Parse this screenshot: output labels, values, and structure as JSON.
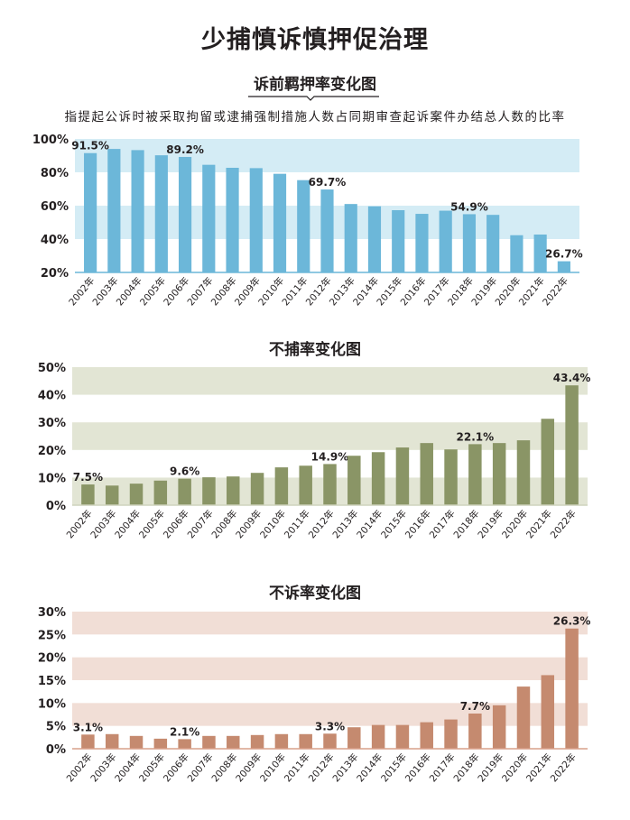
{
  "header": {
    "title": "少捕慎诉慎押促治理",
    "note": "指提起公诉时被采取拘留或逮捕强制措施人数占同期审查起诉案件办结总人数的比率"
  },
  "chart_data": [
    {
      "type": "bar",
      "title": "诉前羁押率变化图",
      "categories": [
        "2002年",
        "2003年",
        "2004年",
        "2005年",
        "2006年",
        "2007年",
        "2008年",
        "2009年",
        "2010年",
        "2011年",
        "2012年",
        "2013年",
        "2014年",
        "2015年",
        "2016年",
        "2017年",
        "2018年",
        "2019年",
        "2020年",
        "2021年",
        "2022年"
      ],
      "values": [
        91.5,
        94.0,
        93.3,
        90.2,
        89.2,
        84.5,
        82.7,
        82.5,
        79.1,
        75.3,
        69.7,
        61.0,
        59.6,
        57.3,
        55.1,
        57.0,
        54.9,
        54.5,
        42.3,
        42.7,
        26.7
      ],
      "data_labels": [
        "91.5%",
        "",
        "",
        "",
        "89.2%",
        "",
        "",
        "",
        "",
        "",
        "69.7%",
        "",
        "",
        "",
        "",
        "",
        "54.9%",
        "",
        "",
        "",
        "26.7%"
      ],
      "ylim": [
        20,
        100
      ],
      "yticks": [
        "20%",
        "40%",
        "60%",
        "80%",
        "100%"
      ],
      "grid": "alternating bands",
      "bar_color": "#6cb7d9",
      "band_color": "#d4ecf5"
    },
    {
      "type": "bar",
      "title": "不捕率变化图",
      "categories": [
        "2002年",
        "2003年",
        "2004年",
        "2005年",
        "2006年",
        "2007年",
        "2008年",
        "2009年",
        "2010年",
        "2011年",
        "2012年",
        "2013年",
        "2014年",
        "2015年",
        "2016年",
        "2017年",
        "2018年",
        "2019年",
        "2020年",
        "2021年",
        "2022年"
      ],
      "values": [
        7.5,
        7.1,
        7.8,
        8.9,
        9.6,
        10.1,
        10.4,
        11.7,
        13.7,
        14.3,
        14.9,
        17.9,
        19.2,
        20.9,
        22.5,
        20.2,
        22.1,
        22.5,
        23.5,
        31.3,
        43.4
      ],
      "data_labels": [
        "7.5%",
        "",
        "",
        "",
        "9.6%",
        "",
        "",
        "",
        "",
        "",
        "14.9%",
        "",
        "",
        "",
        "",
        "",
        "22.1%",
        "",
        "",
        "",
        "43.4%"
      ],
      "ylim": [
        0,
        50
      ],
      "yticks": [
        "0%",
        "10%",
        "20%",
        "30%",
        "40%",
        "50%"
      ],
      "grid": "alternating bands",
      "bar_color": "#8a9566",
      "band_color": "#e2e5d4"
    },
    {
      "type": "bar",
      "title": "不诉率变化图",
      "categories": [
        "2002年",
        "2003年",
        "2004年",
        "2005年",
        "2006年",
        "2007年",
        "2008年",
        "2009年",
        "2010年",
        "2011年",
        "2012年",
        "2013年",
        "2014年",
        "2015年",
        "2016年",
        "2017年",
        "2018年",
        "2019年",
        "2020年",
        "2021年",
        "2022年"
      ],
      "values": [
        3.1,
        3.2,
        2.8,
        2.2,
        2.1,
        2.8,
        2.8,
        3.0,
        3.2,
        3.2,
        3.3,
        4.7,
        5.2,
        5.2,
        5.8,
        6.4,
        7.7,
        9.5,
        13.6,
        16.1,
        26.3
      ],
      "data_labels": [
        "3.1%",
        "",
        "",
        "",
        "2.1%",
        "",
        "",
        "",
        "",
        "",
        "3.3%",
        "",
        "",
        "",
        "",
        "",
        "7.7%",
        "",
        "",
        "",
        "26.3%"
      ],
      "ylim": [
        0,
        30
      ],
      "yticks": [
        "0%",
        "5%",
        "10%",
        "15%",
        "20%",
        "25%",
        "30%"
      ],
      "grid": "alternating bands",
      "bar_color": "#c58a6f",
      "band_color": "#f1ded6"
    }
  ]
}
